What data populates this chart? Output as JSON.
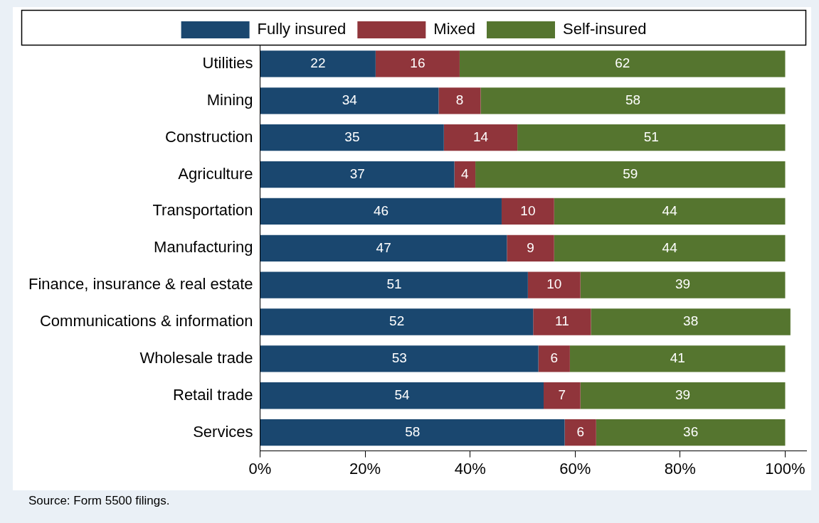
{
  "chart_data": {
    "type": "bar",
    "orientation": "horizontal",
    "stacked": true,
    "categories": [
      "Utilities",
      "Mining",
      "Construction",
      "Agriculture",
      "Transportation",
      "Manufacturing",
      "Finance, insurance & real estate",
      "Communications & information",
      "Wholesale trade",
      "Retail trade",
      "Services"
    ],
    "series": [
      {
        "name": "Fully insured",
        "color": "#1a476f",
        "values": [
          22,
          34,
          35,
          37,
          46,
          47,
          51,
          52,
          53,
          54,
          58
        ]
      },
      {
        "name": "Mixed",
        "color": "#90353b",
        "values": [
          16,
          8,
          14,
          4,
          10,
          9,
          10,
          11,
          6,
          7,
          6
        ]
      },
      {
        "name": "Self-insured",
        "color": "#55752f",
        "values": [
          62,
          58,
          51,
          59,
          44,
          44,
          39,
          38,
          41,
          39,
          36
        ]
      }
    ],
    "xlim": [
      0,
      104
    ],
    "xticks": [
      {
        "value": 0,
        "label": "0%"
      },
      {
        "value": 20,
        "label": "20%"
      },
      {
        "value": 40,
        "label": "40%"
      },
      {
        "value": 60,
        "label": "60%"
      },
      {
        "value": 80,
        "label": "80%"
      },
      {
        "value": 100,
        "label": "100%"
      }
    ],
    "data_labels": true,
    "grid": false,
    "legend": "top",
    "annotations": [
      "Source: Form 5500 filings."
    ]
  }
}
